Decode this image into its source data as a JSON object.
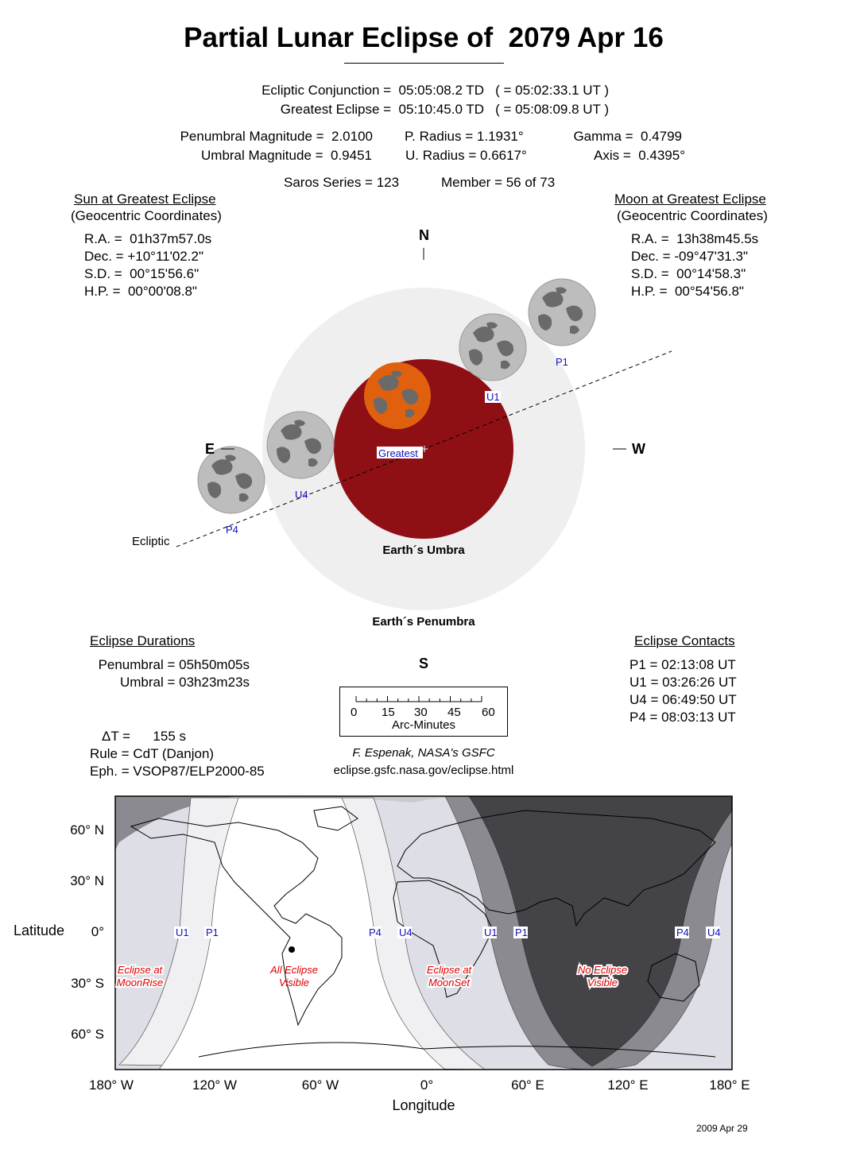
{
  "title": "Partial Lunar Eclipse of  2079 Apr 16",
  "times": {
    "conjunction": "Ecliptic Conjunction =  05:05:08.2 TD   ( = 05:02:33.1 UT )",
    "greatest": "Greatest Eclipse =  05:10:45.0 TD   ( = 05:08:09.8 UT )"
  },
  "params": {
    "pen_mag": "Penumbral Magnitude =  2.0100",
    "umb_mag": "Umbral Magnitude =  0.9451",
    "p_radius": "P. Radius = 1.1931°",
    "u_radius": "U. Radius = 0.6617°",
    "gamma": "Gamma =  0.4799",
    "axis": "Axis =  0.4395°",
    "saros": "Saros Series = 123",
    "member": "Member = 56 of 73"
  },
  "sun": {
    "heading": "Sun at Greatest Eclipse",
    "sub": "(Geocentric Coordinates)",
    "ra": "R.A. =  01h37m57.0s",
    "dec": "Dec. = +10°11'02.2\"",
    "sd": "S.D. =  00°15'56.6\"",
    "hp": "H.P. =  00°00'08.8\""
  },
  "moon": {
    "heading": "Moon at Greatest Eclipse",
    "sub": "(Geocentric Coordinates)",
    "ra": "R.A. =  13h38m45.5s",
    "dec": "Dec. = -09°47'31.3\"",
    "sd": "S.D. =  00°14'58.3\"",
    "hp": "H.P. =  00°54'56.8\""
  },
  "diagram": {
    "north": "N",
    "south": "S",
    "east": "E",
    "west": "W",
    "ecliptic": "Ecliptic",
    "umbra": "Earth´s Umbra",
    "penumbra": "Earth´s Penumbra",
    "greatest": "Greatest",
    "contacts": [
      "P1",
      "U1",
      "U4",
      "P4"
    ],
    "colors": {
      "umbra": "#8e1015",
      "penumbra": "#efefef",
      "moon": "#bdbdbd",
      "eclipsed_moon": "#e0600e"
    }
  },
  "durations": {
    "heading": "Eclipse Durations",
    "penumbral": "Penumbral = 05h50m05s",
    "umbral": "Umbral = 03h23m23s"
  },
  "contacts": {
    "heading": "Eclipse Contacts",
    "items": [
      "P1 = 02:13:08 UT",
      "U1 = 03:26:26 UT",
      "U4 = 06:49:50 UT",
      "P4 = 08:03:13 UT"
    ]
  },
  "scale": {
    "ticks": [
      "0",
      "15",
      "30",
      "45",
      "60"
    ],
    "unit": "Arc-Minutes"
  },
  "misc": {
    "delta_t": "ΔT =      155 s",
    "rule": "Rule = CdT (Danjon)",
    "eph": "Eph. = VSOP87/ELP2000-85",
    "credit": "F. Espenak, NASA's GSFC",
    "url": "eclipse.gsfc.nasa.gov/eclipse.html",
    "date": "2009 Apr 29"
  },
  "map": {
    "ylabel": "Latitude",
    "xlabel": "Longitude",
    "lat_ticks": [
      "60° N",
      "30° N",
      "0°",
      "30° S",
      "60° S"
    ],
    "lon_ticks": [
      "180° W",
      "120° W",
      "60° W",
      "0°",
      "60° E",
      "120° E",
      "180° E"
    ],
    "curve_labels": [
      "U1",
      "P1",
      "P4",
      "U4",
      "U1",
      "P1",
      "P4",
      "U4"
    ],
    "regions": [
      [
        "Eclipse at",
        "MoonRise"
      ],
      [
        "All Eclipse",
        "Visible"
      ],
      [
        "Eclipse at",
        "MoonSet"
      ],
      [
        "No Eclipse",
        "Visible"
      ]
    ]
  }
}
